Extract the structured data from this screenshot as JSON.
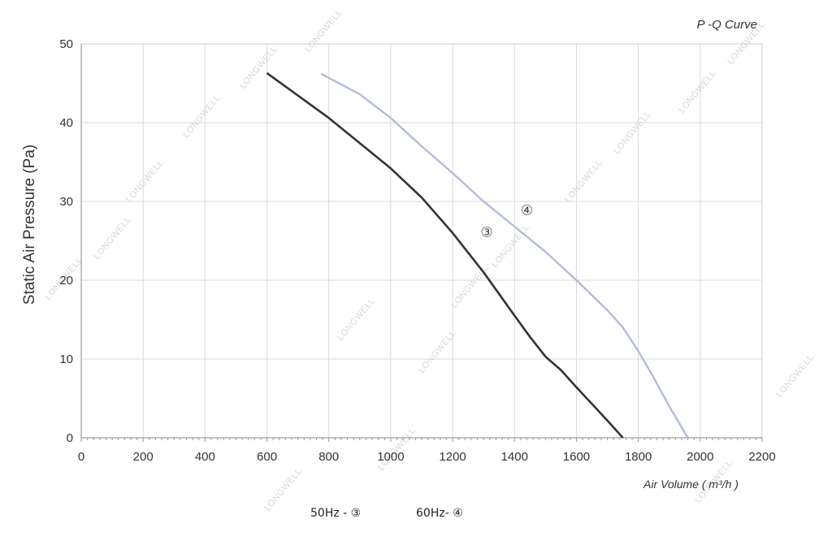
{
  "chart_data": {
    "type": "line",
    "title": "P -Q Curve",
    "xlabel": "Air Volume ( m³/h )",
    "ylabel": "Static Air Pressure  (Pa)",
    "xlim": [
      0,
      2200
    ],
    "ylim": [
      0,
      50
    ],
    "xticks": [
      0,
      200,
      400,
      600,
      800,
      1000,
      1200,
      1400,
      1600,
      1800,
      2000,
      2200
    ],
    "yticks": [
      0,
      10,
      20,
      30,
      40,
      50
    ],
    "grid": true,
    "series": [
      {
        "name": "③",
        "color": "#333333",
        "label_at": [
          1310,
          25.5
        ],
        "points": [
          [
            600,
            46.3
          ],
          [
            800,
            40.6
          ],
          [
            1000,
            34.2
          ],
          [
            1100,
            30.5
          ],
          [
            1200,
            26.0
          ],
          [
            1300,
            21.0
          ],
          [
            1400,
            15.5
          ],
          [
            1450,
            12.8
          ],
          [
            1500,
            10.3
          ],
          [
            1550,
            8.6
          ],
          [
            1600,
            6.4
          ],
          [
            1650,
            4.3
          ],
          [
            1700,
            2.2
          ],
          [
            1750,
            0
          ]
        ]
      },
      {
        "name": "④",
        "color": "#b3bcd8",
        "label_at": [
          1440,
          28.3
        ],
        "points": [
          [
            775,
            46.2
          ],
          [
            900,
            43.6
          ],
          [
            1000,
            40.6
          ],
          [
            1100,
            37.0
          ],
          [
            1200,
            33.6
          ],
          [
            1300,
            30.0
          ],
          [
            1400,
            26.8
          ],
          [
            1500,
            23.6
          ],
          [
            1600,
            20.0
          ],
          [
            1700,
            16.2
          ],
          [
            1750,
            14.0
          ],
          [
            1800,
            11.0
          ],
          [
            1850,
            7.6
          ],
          [
            1900,
            4.0
          ],
          [
            1960,
            0
          ]
        ]
      }
    ],
    "legend": [
      {
        "label": "50Hz -  ③"
      },
      {
        "label": "60Hz-  ④"
      }
    ],
    "watermark": "LONGWELL"
  }
}
